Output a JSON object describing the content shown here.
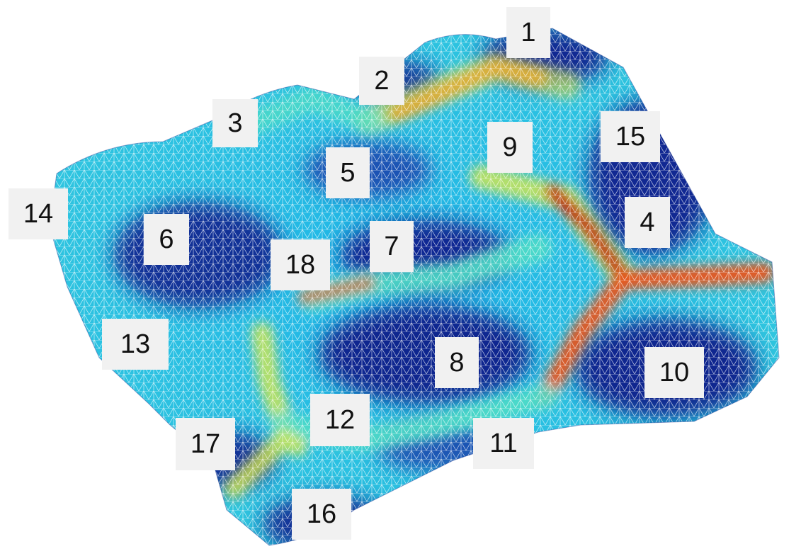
{
  "surface": {
    "colors": {
      "low": "#0a1a8a",
      "mid_low": "#1fb5e8",
      "mid": "#4fdcc6",
      "mid_high": "#d9e84a",
      "high": "#e8571c",
      "peak": "#c41c0c",
      "mesh": "#ffffff"
    }
  },
  "labels": {
    "l1": "1",
    "l2": "2",
    "l3": "3",
    "l4": "4",
    "l5": "5",
    "l6": "6",
    "l7": "7",
    "l8": "8",
    "l9": "9",
    "l10": "10",
    "l11": "11",
    "l12": "12",
    "l13": "13",
    "l14": "14",
    "l15": "15",
    "l16": "16",
    "l17": "17",
    "l18": "18"
  }
}
